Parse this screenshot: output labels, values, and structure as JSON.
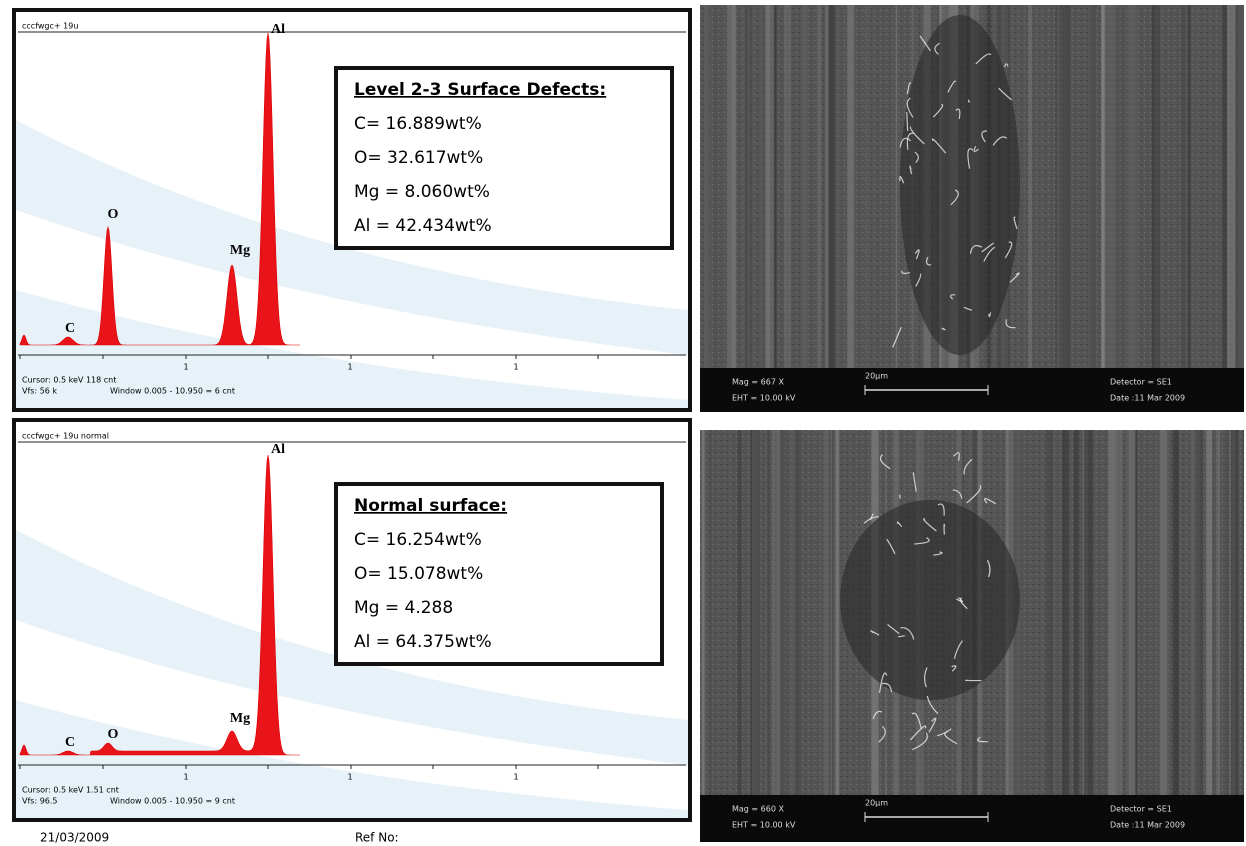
{
  "panels": [
    {
      "spectrum": {
        "header": "cccfwgc+ 19u",
        "peaks": {
          "c": "C",
          "o": "O",
          "mg": "Mg",
          "al": "Al"
        },
        "x_labels": [
          "1",
          "1",
          "1"
        ],
        "cursor": "Cursor: 0.5 keV   118 cnt",
        "vfs": "Vfs: 56 k",
        "window": "Window 0.005 - 10.950 = 6 cnt"
      },
      "box": {
        "title": "Level 2-3 Surface Defects:",
        "lines": [
          "C= 16.889wt%",
          "O= 32.617wt%",
          "Mg = 8.060wt%",
          "Al = 42.434wt%"
        ]
      },
      "sem": {
        "mag": "Mag = 667 X",
        "eht": "EHT = 10.00 kV",
        "scale": "20µm",
        "detector": "Detector = SE1",
        "date": "Date :11 Mar 2009"
      }
    },
    {
      "spectrum": {
        "header": "cccfwgc+ 19u normal",
        "peaks": {
          "c": "C",
          "o": "O",
          "mg": "Mg",
          "al": "Al"
        },
        "x_labels": [
          "1",
          "1",
          "1"
        ],
        "cursor": "Cursor: 0.5 keV   1.51 cnt",
        "vfs": "Vfs: 96.5",
        "window": "Window 0.005 - 10.950 = 9 cnt"
      },
      "box": {
        "title": "Normal surface:",
        "lines": [
          "C= 16.254wt%",
          "O= 15.078wt%",
          "Mg = 4.288",
          "Al = 64.375wt%"
        ]
      },
      "sem": {
        "mag": "Mag = 660 X",
        "eht": "EHT = 10.00 kV",
        "scale": "20µm",
        "detector": "Detector = SE1",
        "date": "Date :11 Mar 2009"
      }
    }
  ],
  "footer": {
    "date": "21/03/2009",
    "ref": "Ref No:"
  }
}
